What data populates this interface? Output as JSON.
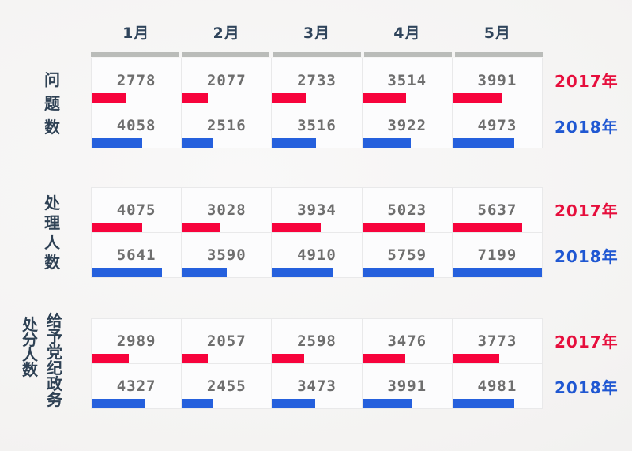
{
  "chart_data": {
    "type": "bar",
    "orientation": "horizontal",
    "title": "",
    "categories": [
      "1月",
      "2月",
      "3月",
      "4月",
      "5月"
    ],
    "series_names": [
      "2017年",
      "2018年"
    ],
    "max_value": 7199,
    "colors": {
      "bar_2017": "#f7033c",
      "bar_2018": "#2560dd",
      "legend_2017_text": "#e60e3c",
      "legend_2018_text": "#1f57d2",
      "value_text": "#6e6e6e",
      "label_text": "#2e4154",
      "rule": "#babcb9"
    },
    "legend_position": "right",
    "grid": true,
    "groups": [
      {
        "label": "问题数",
        "series": [
          {
            "name": "2017年",
            "values": [
              2778,
              2077,
              2733,
              3514,
              3991
            ]
          },
          {
            "name": "2018年",
            "values": [
              4058,
              2516,
              3516,
              3922,
              4973
            ]
          }
        ]
      },
      {
        "label": "处理人数",
        "series": [
          {
            "name": "2017年",
            "values": [
              4075,
              3028,
              3934,
              5023,
              5637
            ]
          },
          {
            "name": "2018年",
            "values": [
              5641,
              3590,
              4910,
              5759,
              7199
            ]
          }
        ]
      },
      {
        "label": "处分人数",
        "sublabel": "给予党纪政务",
        "series": [
          {
            "name": "2017年",
            "values": [
              2989,
              2057,
              2598,
              3476,
              3773
            ]
          },
          {
            "name": "2018年",
            "values": [
              4327,
              2455,
              3473,
              3991,
              4981
            ]
          }
        ]
      }
    ]
  }
}
